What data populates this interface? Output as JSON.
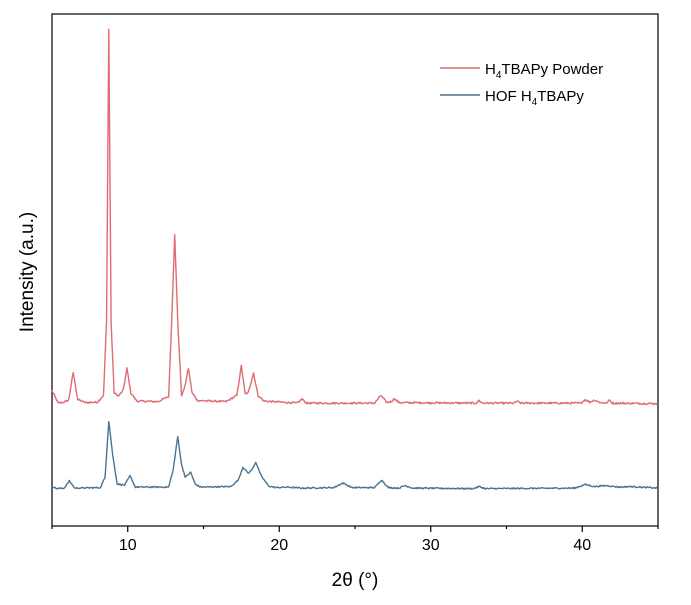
{
  "chart_data": {
    "type": "line",
    "title": "",
    "xlabel": "2θ (°)",
    "ylabel": "Intensity (a.u.)",
    "xlim": [
      5,
      45
    ],
    "ylim": [
      0,
      100
    ],
    "xticks": [
      10,
      20,
      30,
      40
    ],
    "xtick_labels": [
      "10",
      "20",
      "30",
      "40"
    ],
    "yticks_shown": false,
    "grid": false,
    "legend_position": "top-right",
    "series": [
      {
        "name": "H4TBAPy Powder",
        "legend_parts": [
          "H",
          "4",
          "TBAPy Powder"
        ],
        "color": "#e06b74",
        "baseline": 23.9,
        "noise": 0.35,
        "points": [
          [
            5.0,
            26.5
          ],
          [
            5.4,
            24.0
          ],
          [
            5.8,
            24.2
          ],
          [
            6.1,
            24.6
          ],
          [
            6.4,
            30.0
          ],
          [
            6.7,
            24.7
          ],
          [
            7.2,
            24.1
          ],
          [
            8.0,
            24.2
          ],
          [
            8.4,
            25.5
          ],
          [
            8.6,
            40.0
          ],
          [
            8.75,
            97.0
          ],
          [
            8.9,
            40.0
          ],
          [
            9.1,
            26.0
          ],
          [
            9.4,
            25.4
          ],
          [
            9.7,
            26.5
          ],
          [
            9.95,
            30.8
          ],
          [
            10.2,
            26.0
          ],
          [
            10.6,
            24.4
          ],
          [
            12.0,
            24.3
          ],
          [
            12.7,
            25.3
          ],
          [
            12.9,
            40.0
          ],
          [
            13.1,
            57.0
          ],
          [
            13.3,
            40.0
          ],
          [
            13.55,
            25.5
          ],
          [
            13.75,
            27.0
          ],
          [
            14.0,
            30.8
          ],
          [
            14.25,
            26.0
          ],
          [
            14.6,
            24.5
          ],
          [
            16.5,
            24.3
          ],
          [
            17.2,
            25.5
          ],
          [
            17.5,
            31.3
          ],
          [
            17.75,
            25.8
          ],
          [
            17.95,
            26.0
          ],
          [
            18.3,
            29.9
          ],
          [
            18.6,
            25.5
          ],
          [
            19.0,
            24.4
          ],
          [
            21.2,
            24.0
          ],
          [
            21.5,
            24.8
          ],
          [
            21.8,
            24.0
          ],
          [
            26.3,
            24.0
          ],
          [
            26.7,
            25.5
          ],
          [
            27.1,
            24.1
          ],
          [
            27.4,
            24.3
          ],
          [
            27.6,
            24.9
          ],
          [
            27.9,
            24.1
          ],
          [
            33.0,
            24.0
          ],
          [
            33.2,
            24.5
          ],
          [
            33.4,
            24.0
          ],
          [
            35.5,
            24.0
          ],
          [
            35.7,
            24.4
          ],
          [
            35.9,
            24.0
          ],
          [
            39.9,
            24.0
          ],
          [
            40.2,
            24.7
          ],
          [
            40.5,
            24.2
          ],
          [
            40.8,
            24.6
          ],
          [
            41.2,
            24.1
          ],
          [
            41.6,
            24.0
          ],
          [
            41.8,
            24.6
          ],
          [
            42.0,
            24.0
          ],
          [
            45.0,
            23.9
          ]
        ]
      },
      {
        "name": "HOF H4TBAPy",
        "legend_parts": [
          "HOF H",
          "4",
          "TBAPy"
        ],
        "color": "#4a7490",
        "baseline": 7.3,
        "noise": 0.25,
        "points": [
          [
            5.0,
            7.8
          ],
          [
            5.3,
            7.3
          ],
          [
            5.8,
            7.4
          ],
          [
            6.15,
            8.8
          ],
          [
            6.5,
            7.4
          ],
          [
            8.2,
            7.5
          ],
          [
            8.5,
            9.5
          ],
          [
            8.75,
            20.5
          ],
          [
            9.0,
            14.0
          ],
          [
            9.3,
            8.2
          ],
          [
            9.8,
            8.0
          ],
          [
            10.15,
            9.8
          ],
          [
            10.5,
            7.6
          ],
          [
            12.7,
            7.6
          ],
          [
            13.0,
            11.0
          ],
          [
            13.3,
            17.5
          ],
          [
            13.55,
            12.0
          ],
          [
            13.8,
            9.5
          ],
          [
            14.15,
            10.5
          ],
          [
            14.45,
            8.2
          ],
          [
            14.8,
            7.6
          ],
          [
            16.8,
            7.7
          ],
          [
            17.3,
            9.0
          ],
          [
            17.6,
            11.5
          ],
          [
            17.95,
            10.3
          ],
          [
            18.2,
            11.0
          ],
          [
            18.45,
            12.5
          ],
          [
            18.8,
            9.8
          ],
          [
            19.3,
            7.8
          ],
          [
            19.8,
            7.5
          ],
          [
            20.5,
            7.6
          ],
          [
            21.5,
            7.4
          ],
          [
            23.6,
            7.5
          ],
          [
            24.2,
            8.4
          ],
          [
            24.8,
            7.5
          ],
          [
            26.3,
            7.5
          ],
          [
            26.75,
            9.0
          ],
          [
            27.2,
            7.5
          ],
          [
            27.9,
            7.4
          ],
          [
            28.3,
            7.9
          ],
          [
            28.8,
            7.4
          ],
          [
            32.8,
            7.3
          ],
          [
            33.2,
            7.7
          ],
          [
            33.6,
            7.3
          ],
          [
            39.5,
            7.4
          ],
          [
            40.2,
            8.1
          ],
          [
            40.8,
            7.7
          ],
          [
            41.6,
            7.9
          ],
          [
            42.4,
            7.6
          ],
          [
            43.2,
            7.7
          ],
          [
            45.0,
            7.4
          ]
        ]
      }
    ]
  }
}
